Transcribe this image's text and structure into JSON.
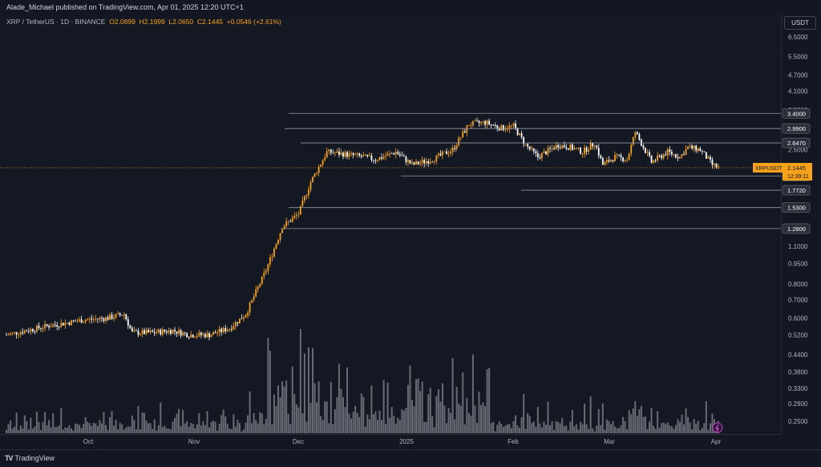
{
  "header": {
    "published_text": "Alade_Michael published on TradingView.com, Apr 01, 2025 12:20 UTC+1"
  },
  "legend": {
    "symbol": "XRP / TetherUS · 1D · BINANCE",
    "open_label": "O",
    "open": "2.0899",
    "high_label": "H",
    "high": "2.1999",
    "low_label": "L",
    "low": "2.0650",
    "close_label": "C",
    "close": "2.1445",
    "change": "+0.0546 (+2.61%)"
  },
  "currency_button": "USDT",
  "footer": {
    "brand": "TradingView"
  },
  "colors": {
    "up": "#f7a21b",
    "down": "#ffffff",
    "bg": "#141823",
    "level_line": "#9598a1",
    "volume": "#8c8f96"
  },
  "chart_data": {
    "type": "candlestick",
    "scale": "log",
    "y_tick_labels": [
      "6.5000",
      "5.5000",
      "4.7000",
      "4.1000",
      "3.5000",
      "2.9500",
      "2.5000",
      "2.0000",
      "1.1000",
      "0.9500",
      "0.8000",
      "0.7000",
      "0.6000",
      "0.5200",
      "0.4400",
      "0.3800",
      "0.3300",
      "0.2900",
      "0.2500"
    ],
    "x_tick_labels": [
      "Oct",
      "Nov",
      "Dec",
      "2025",
      "Feb",
      "Mar",
      "Apr"
    ],
    "price_label": {
      "symbol": "XRPUSDT",
      "value": "2.1445",
      "countdown": "12:39:11"
    },
    "levels": [
      {
        "value": "3.4000"
      },
      {
        "value": "2.9900"
      },
      {
        "value": "2.6470"
      },
      {
        "value": "2.0000"
      },
      {
        "value": "1.7720"
      },
      {
        "value": "1.5300"
      },
      {
        "value": "1.2800"
      }
    ],
    "indicator": {
      "icon": "lightning-icon"
    }
  }
}
